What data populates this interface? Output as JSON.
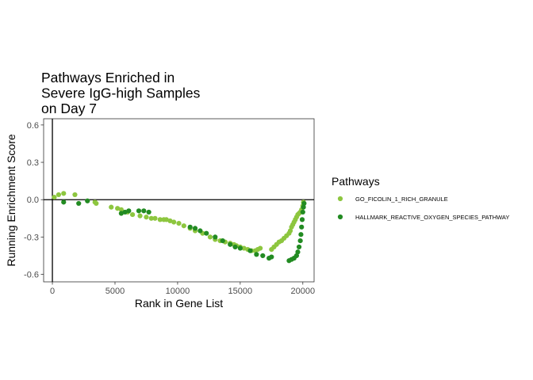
{
  "chart_data": {
    "type": "scatter",
    "title_lines": [
      "Pathways Enriched in",
      "Severe IgG-high Samples",
      "on Day 7"
    ],
    "xlabel": "Rank in Gene List",
    "ylabel": "Running Enrichment Score",
    "xlim": [
      -700,
      20900
    ],
    "ylim": [
      -0.66,
      0.65
    ],
    "x_ticks": [
      0,
      5000,
      10000,
      15000,
      20000
    ],
    "x_tick_labels": [
      "0",
      "5000",
      "10000",
      "15000",
      "20000"
    ],
    "y_ticks": [
      -0.6,
      -0.3,
      0.0,
      0.3,
      0.6
    ],
    "y_tick_labels": [
      "-0.6",
      "-0.3",
      "0.0",
      "0.3",
      "0.6"
    ],
    "reference_lines": {
      "h": 0,
      "v": 0
    },
    "grid": false,
    "legend": {
      "title": "Pathways",
      "position": "right"
    },
    "series": [
      {
        "name": "GO_FICOLIN_1_RICH_GRANULE",
        "color": "#8dc63f",
        "x": [
          150,
          500,
          900,
          1800,
          3400,
          3500,
          4700,
          5200,
          5500,
          6000,
          6400,
          7000,
          7500,
          7900,
          8200,
          8600,
          8900,
          9100,
          9400,
          9700,
          10100,
          10500,
          11000,
          11400,
          12000,
          12600,
          13000,
          13400,
          13800,
          14200,
          14500,
          14700,
          15000,
          15300,
          15600,
          15900,
          16200,
          16400,
          16600,
          17500,
          17700,
          17900,
          18100,
          18300,
          18500,
          18700,
          18900,
          19000,
          19100,
          19200,
          19300,
          19400,
          19500,
          19600,
          19700,
          19800,
          19900,
          20000,
          20050
        ],
        "y": [
          0.02,
          0.04,
          0.05,
          0.04,
          -0.02,
          -0.03,
          -0.06,
          -0.07,
          -0.08,
          -0.1,
          -0.12,
          -0.13,
          -0.14,
          -0.15,
          -0.15,
          -0.16,
          -0.16,
          -0.16,
          -0.17,
          -0.18,
          -0.19,
          -0.21,
          -0.23,
          -0.25,
          -0.27,
          -0.3,
          -0.32,
          -0.33,
          -0.34,
          -0.35,
          -0.36,
          -0.37,
          -0.38,
          -0.39,
          -0.4,
          -0.41,
          -0.41,
          -0.4,
          -0.39,
          -0.4,
          -0.38,
          -0.36,
          -0.34,
          -0.33,
          -0.31,
          -0.29,
          -0.27,
          -0.25,
          -0.22,
          -0.2,
          -0.18,
          -0.16,
          -0.14,
          -0.12,
          -0.11,
          -0.1,
          -0.08,
          -0.05,
          -0.02
        ]
      },
      {
        "name": "HALLMARK_REACTIVE_OXYGEN_SPECIES_PATHWAY",
        "color": "#228b22",
        "x": [
          900,
          2100,
          2800,
          5500,
          5800,
          6100,
          6900,
          7300,
          7700,
          11000,
          11400,
          11800,
          12300,
          13000,
          13600,
          14200,
          14600,
          15000,
          15800,
          16300,
          16800,
          17300,
          17500,
          18900,
          19100,
          19300,
          19500,
          19600,
          19700,
          19800,
          19850,
          19900,
          19950,
          20000,
          20050,
          20100
        ],
        "y": [
          -0.02,
          -0.03,
          -0.01,
          -0.11,
          -0.1,
          -0.09,
          -0.09,
          -0.09,
          -0.1,
          -0.22,
          -0.23,
          -0.25,
          -0.27,
          -0.3,
          -0.33,
          -0.36,
          -0.38,
          -0.39,
          -0.41,
          -0.44,
          -0.45,
          -0.47,
          -0.46,
          -0.49,
          -0.48,
          -0.47,
          -0.45,
          -0.42,
          -0.38,
          -0.33,
          -0.28,
          -0.22,
          -0.16,
          -0.1,
          -0.06,
          -0.03
        ]
      }
    ]
  }
}
